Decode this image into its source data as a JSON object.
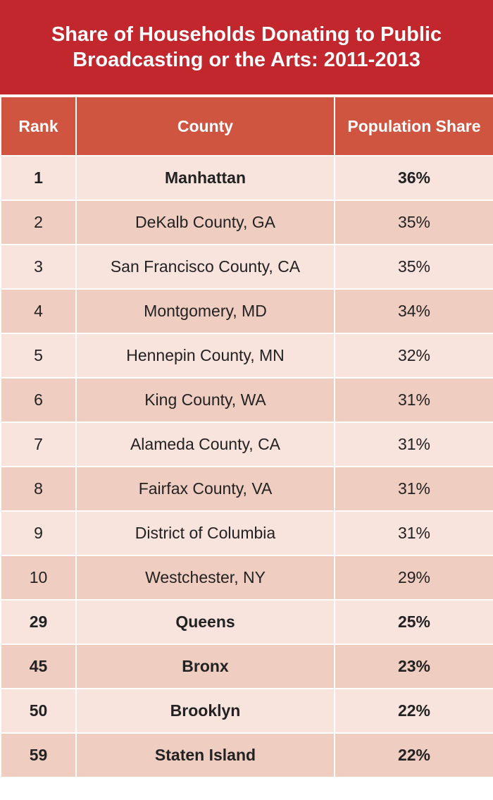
{
  "colors": {
    "title_background": "#c1272d",
    "header_background": "#cf5540",
    "row_light": "#f8e3dd",
    "row_dark": "#efcdc1"
  },
  "chart_data": {
    "type": "table",
    "title_lines": [
      "Share of Households Donating to Public",
      "Broadcasting or the Arts: 2011-2013"
    ],
    "columns": [
      "Rank",
      "County",
      "Population Share"
    ],
    "rows": [
      {
        "rank": "1",
        "county": "Manhattan",
        "share": "36%",
        "bold": true
      },
      {
        "rank": "2",
        "county": "DeKalb County, GA",
        "share": "35%",
        "bold": false
      },
      {
        "rank": "3",
        "county": "San Francisco County, CA",
        "share": "35%",
        "bold": false
      },
      {
        "rank": "4",
        "county": "Montgomery, MD",
        "share": "34%",
        "bold": false
      },
      {
        "rank": "5",
        "county": "Hennepin County, MN",
        "share": "32%",
        "bold": false
      },
      {
        "rank": "6",
        "county": "King County, WA",
        "share": "31%",
        "bold": false
      },
      {
        "rank": "7",
        "county": "Alameda County, CA",
        "share": "31%",
        "bold": false
      },
      {
        "rank": "8",
        "county": "Fairfax County, VA",
        "share": "31%",
        "bold": false
      },
      {
        "rank": "9",
        "county": "District of Columbia",
        "share": "31%",
        "bold": false
      },
      {
        "rank": "10",
        "county": "Westchester, NY",
        "share": "29%",
        "bold": false
      },
      {
        "rank": "29",
        "county": "Queens",
        "share": "25%",
        "bold": true
      },
      {
        "rank": "45",
        "county": "Bronx",
        "share": "23%",
        "bold": true
      },
      {
        "rank": "50",
        "county": "Brooklyn",
        "share": "22%",
        "bold": true
      },
      {
        "rank": "59",
        "county": "Staten Island",
        "share": "22%",
        "bold": true
      }
    ]
  }
}
